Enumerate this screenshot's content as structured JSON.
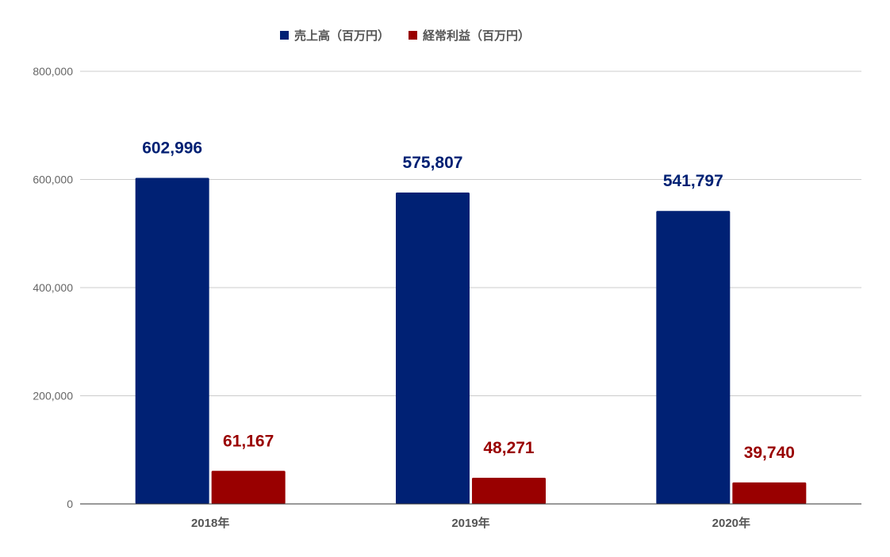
{
  "chart_data": {
    "type": "bar",
    "categories": [
      "2018年",
      "2019年",
      "2020年"
    ],
    "series": [
      {
        "name": "売上高（百万円）",
        "color": "#002174",
        "values": [
          602996,
          575807,
          541797
        ],
        "labels": [
          "602,996",
          "575,807",
          "541,797"
        ]
      },
      {
        "name": "経常利益（百万円）",
        "color": "#990000",
        "values": [
          61167,
          48271,
          39740
        ],
        "labels": [
          "61,167",
          "48,271",
          "39,740"
        ]
      }
    ],
    "ylim": [
      0,
      800000
    ],
    "yticks": [
      0,
      200000,
      400000,
      600000,
      800000
    ],
    "ytick_labels": [
      "0",
      "200,000",
      "400,000",
      "600,000",
      "800,000"
    ],
    "grid": true,
    "legend": "top-center",
    "gridline_color": "#cccccc",
    "baseline_color": "#333333"
  }
}
